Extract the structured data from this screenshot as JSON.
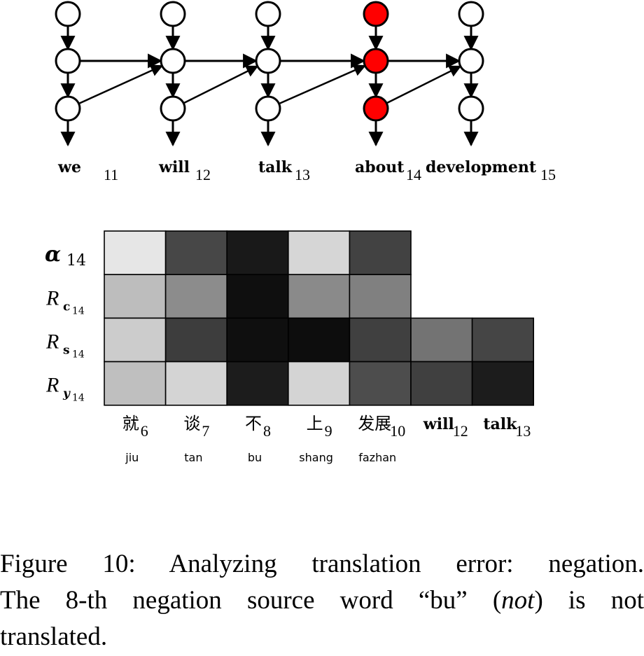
{
  "rnn": {
    "words": [
      {
        "word": "we",
        "sub": "11"
      },
      {
        "word": "will",
        "sub": "12"
      },
      {
        "word": "talk",
        "sub": "13"
      },
      {
        "word": "about",
        "sub": "14"
      },
      {
        "word": "development",
        "sub": "15"
      }
    ],
    "highlight_index": 3,
    "highlight_color": "#ff0000"
  },
  "heatmap": {
    "rows": [
      {
        "label": "α",
        "sub": "14",
        "kind": "alpha",
        "values": [
          0.1,
          0.72,
          0.9,
          0.16,
          0.74
        ]
      },
      {
        "label": "R",
        "subvar": "c",
        "sub": "14",
        "kind": "bold",
        "values": [
          0.26,
          0.45,
          0.94,
          0.46,
          0.5
        ]
      },
      {
        "label": "R",
        "subvar": "s",
        "sub": "14",
        "kind": "bold",
        "values": [
          0.2,
          0.76,
          0.94,
          0.95,
          0.75,
          0.55,
          0.73
        ]
      },
      {
        "label": "R",
        "subvar": "y",
        "sub": "14",
        "kind": "bolditalic",
        "values": [
          0.25,
          0.17,
          0.89,
          0.17,
          0.7,
          0.75,
          0.89
        ]
      }
    ],
    "columns": [
      {
        "label": "就",
        "sub": "6",
        "pinyin": "jiu",
        "kind": "zh"
      },
      {
        "label": "谈",
        "sub": "7",
        "pinyin": "tan",
        "kind": "zh"
      },
      {
        "label": "不",
        "sub": "8",
        "pinyin": "bu",
        "kind": "zh"
      },
      {
        "label": "上",
        "sub": "9",
        "pinyin": "shang",
        "kind": "zh"
      },
      {
        "label": "发展",
        "sub": "10",
        "pinyin": "fazhan",
        "kind": "zh"
      },
      {
        "label": "will",
        "sub": "12",
        "pinyin": "",
        "kind": "en"
      },
      {
        "label": "talk",
        "sub": "13",
        "pinyin": "",
        "kind": "en"
      }
    ]
  },
  "caption": {
    "line1": "Figure 10: Analyzing translation error: negation.",
    "line2_pre": "The 8-th negation source word “bu” (",
    "line2_em": "not",
    "line2_post": ") is not",
    "line3": "translated."
  }
}
